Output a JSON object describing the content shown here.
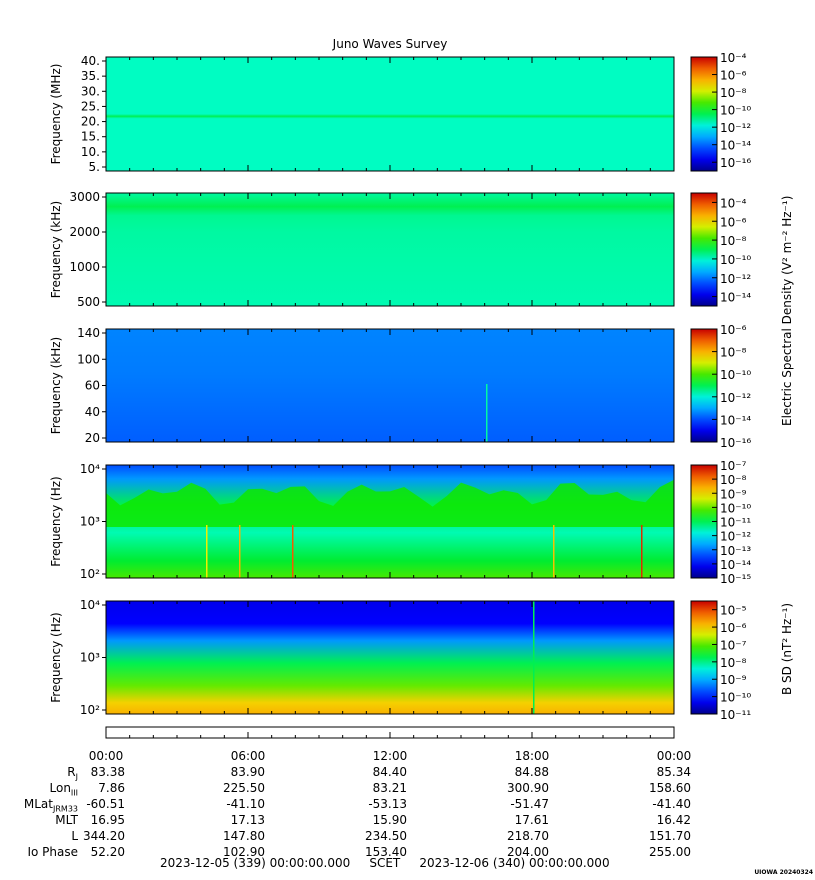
{
  "title": "Juno Waves Survey",
  "stamp": "UIOWA 20240324",
  "chart_data": [
    {
      "type": "heatmap",
      "ylabel": "Frequency (MHz)",
      "y_ticks": [
        "40.",
        "35.",
        "30.",
        "25.",
        "20.",
        "15.",
        "10.",
        "5."
      ],
      "ylim": [
        4,
        41
      ],
      "colorbar": {
        "min_exp": -17,
        "max_exp": -4,
        "tick_exps": [
          -4,
          -6,
          -8,
          -10,
          -12,
          -14,
          -16
        ]
      }
    },
    {
      "type": "heatmap",
      "ylabel": "Frequency (kHz)",
      "y_ticks": [
        "3000",
        "2000",
        "1000",
        "500"
      ],
      "ylim": [
        200,
        3100
      ],
      "colorbar": {
        "min_exp": -15,
        "max_exp": -3,
        "tick_exps": [
          -4,
          -6,
          -8,
          -10,
          -12,
          -14
        ]
      }
    },
    {
      "type": "heatmap",
      "ylabel": "Frequency (kHz)",
      "y_ticks": [
        "140",
        "100",
        "60",
        "40",
        "20"
      ],
      "ylim": [
        20,
        140
      ],
      "colorbar": {
        "min_exp": -16,
        "max_exp": -6,
        "tick_exps": [
          -6,
          -8,
          -10,
          -12,
          -14,
          -16
        ]
      }
    },
    {
      "type": "heatmap",
      "ylabel": "Frequency (Hz)",
      "y_ticks": [
        "10^4",
        "10^3",
        "10^2"
      ],
      "ylim": [
        50,
        20000
      ],
      "colorbar": {
        "min_exp": -15,
        "max_exp": -7,
        "tick_exps": [
          -7,
          -8,
          -9,
          -10,
          -11,
          -12,
          -13,
          -14,
          -15
        ]
      }
    },
    {
      "type": "heatmap",
      "ylabel": "Frequency (Hz)",
      "y_ticks": [
        "10^4",
        "10^3",
        "10^2"
      ],
      "ylim": [
        50,
        20000
      ],
      "colorbar": {
        "min_exp": -11,
        "max_exp": -4.5,
        "tick_exps": [
          -5,
          -6,
          -7,
          -8,
          -9,
          -10,
          -11
        ]
      }
    }
  ],
  "colorbar_titles": {
    "electric": "Electric Spectral Density (V² m⁻² Hz⁻¹)",
    "magnetic": "B SD (nT² Hz⁻¹)"
  },
  "x_axis": {
    "tick_labels": [
      "00:00",
      "06:00",
      "12:00",
      "18:00",
      "00:00"
    ]
  },
  "ephemeris": [
    {
      "label": "R",
      "sub": "J",
      "values": [
        "83.38",
        "83.90",
        "84.40",
        "84.88",
        "85.34"
      ]
    },
    {
      "label": "Lon",
      "sub": "III",
      "values": [
        "7.86",
        "225.50",
        "83.21",
        "300.90",
        "158.60"
      ]
    },
    {
      "label": "MLat",
      "sub": "JRM33",
      "values": [
        "-60.51",
        "-41.10",
        "-53.13",
        "-51.47",
        "-41.40"
      ]
    },
    {
      "label": "MLT",
      "sub": "",
      "values": [
        "16.95",
        "17.13",
        "15.90",
        "17.61",
        "16.42"
      ]
    },
    {
      "label": "L",
      "sub": "",
      "values": [
        "344.20",
        "147.80",
        "234.50",
        "218.70",
        "151.70"
      ]
    },
    {
      "label": "Io Phase",
      "sub": "",
      "values": [
        "52.20",
        "102.90",
        "153.40",
        "204.00",
        "255.00"
      ]
    }
  ],
  "footer": {
    "start": "2023-12-05 (339) 00:00:00.000",
    "label": "SCET",
    "end": "2023-12-06 (340) 00:00:00.000"
  }
}
